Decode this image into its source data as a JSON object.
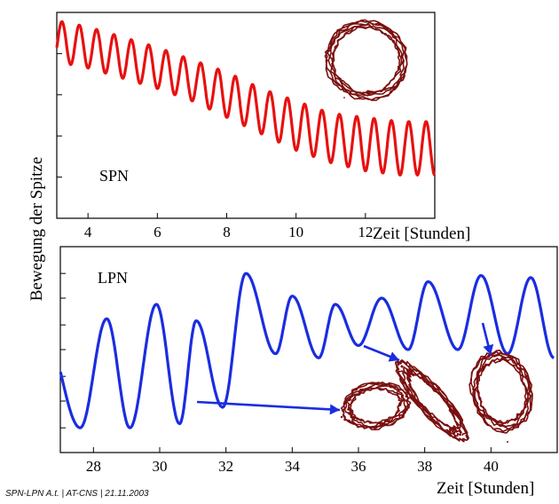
{
  "ylabel": "Bewegung der Spitze",
  "footer": "SPN-LPN A.t. | AT-CNS | 21.11.2003",
  "colors": {
    "spn_line": "#e8100f",
    "lpn_line": "#1a2de0",
    "orbit": "#7a1010",
    "arrow": "#1a2de0"
  },
  "chart_data": [
    {
      "type": "line",
      "label": "SPN",
      "xlabel": "Zeit [Stunden]",
      "xlim": [
        3.1,
        14.0
      ],
      "x_ticks": [
        4,
        6,
        8,
        10,
        12
      ],
      "ylim": [
        0,
        1
      ],
      "grid": false,
      "series": [
        {
          "color": "#e8100f",
          "period_hours": 0.5,
          "x": [
            3.1,
            4.0,
            5.0,
            6.0,
            7.0,
            8.0,
            9.0,
            10.0,
            11.0,
            12.0,
            13.0,
            14.0
          ],
          "center": [
            0.86,
            0.83,
            0.78,
            0.73,
            0.67,
            0.6,
            0.52,
            0.45,
            0.39,
            0.36,
            0.34,
            0.34
          ],
          "amplitude": [
            0.1,
            0.1,
            0.1,
            0.1,
            0.1,
            0.11,
            0.11,
            0.12,
            0.12,
            0.13,
            0.13,
            0.13
          ]
        }
      ],
      "inset": "phase-orbit"
    },
    {
      "type": "line",
      "label": "LPN",
      "xlabel": "Zeit [Stunden]",
      "xlim": [
        27.0,
        42.0
      ],
      "x_ticks": [
        28,
        30,
        32,
        34,
        36,
        38,
        40
      ],
      "ylim": [
        0,
        1
      ],
      "grid": false,
      "series": [
        {
          "color": "#1a2de0",
          "peaks_hours": [
            26.5,
            28.4,
            29.9,
            31.1,
            32.6,
            34.0,
            35.3,
            36.7,
            38.1,
            39.7,
            41.2
          ],
          "troughs_hours": [
            27.6,
            29.1,
            30.6,
            31.9,
            33.5,
            34.8,
            36.0,
            37.5,
            39.0,
            40.5,
            41.9
          ],
          "peak_values": [
            0.6,
            0.65,
            0.72,
            0.64,
            0.87,
            0.76,
            0.72,
            0.75,
            0.83,
            0.86,
            0.85
          ],
          "trough_values": [
            0.12,
            0.12,
            0.14,
            0.22,
            0.48,
            0.46,
            0.52,
            0.5,
            0.5,
            0.48,
            0.46
          ]
        }
      ],
      "insets": [
        "phase-orbit",
        "phase-orbit",
        "phase-orbit"
      ]
    }
  ]
}
